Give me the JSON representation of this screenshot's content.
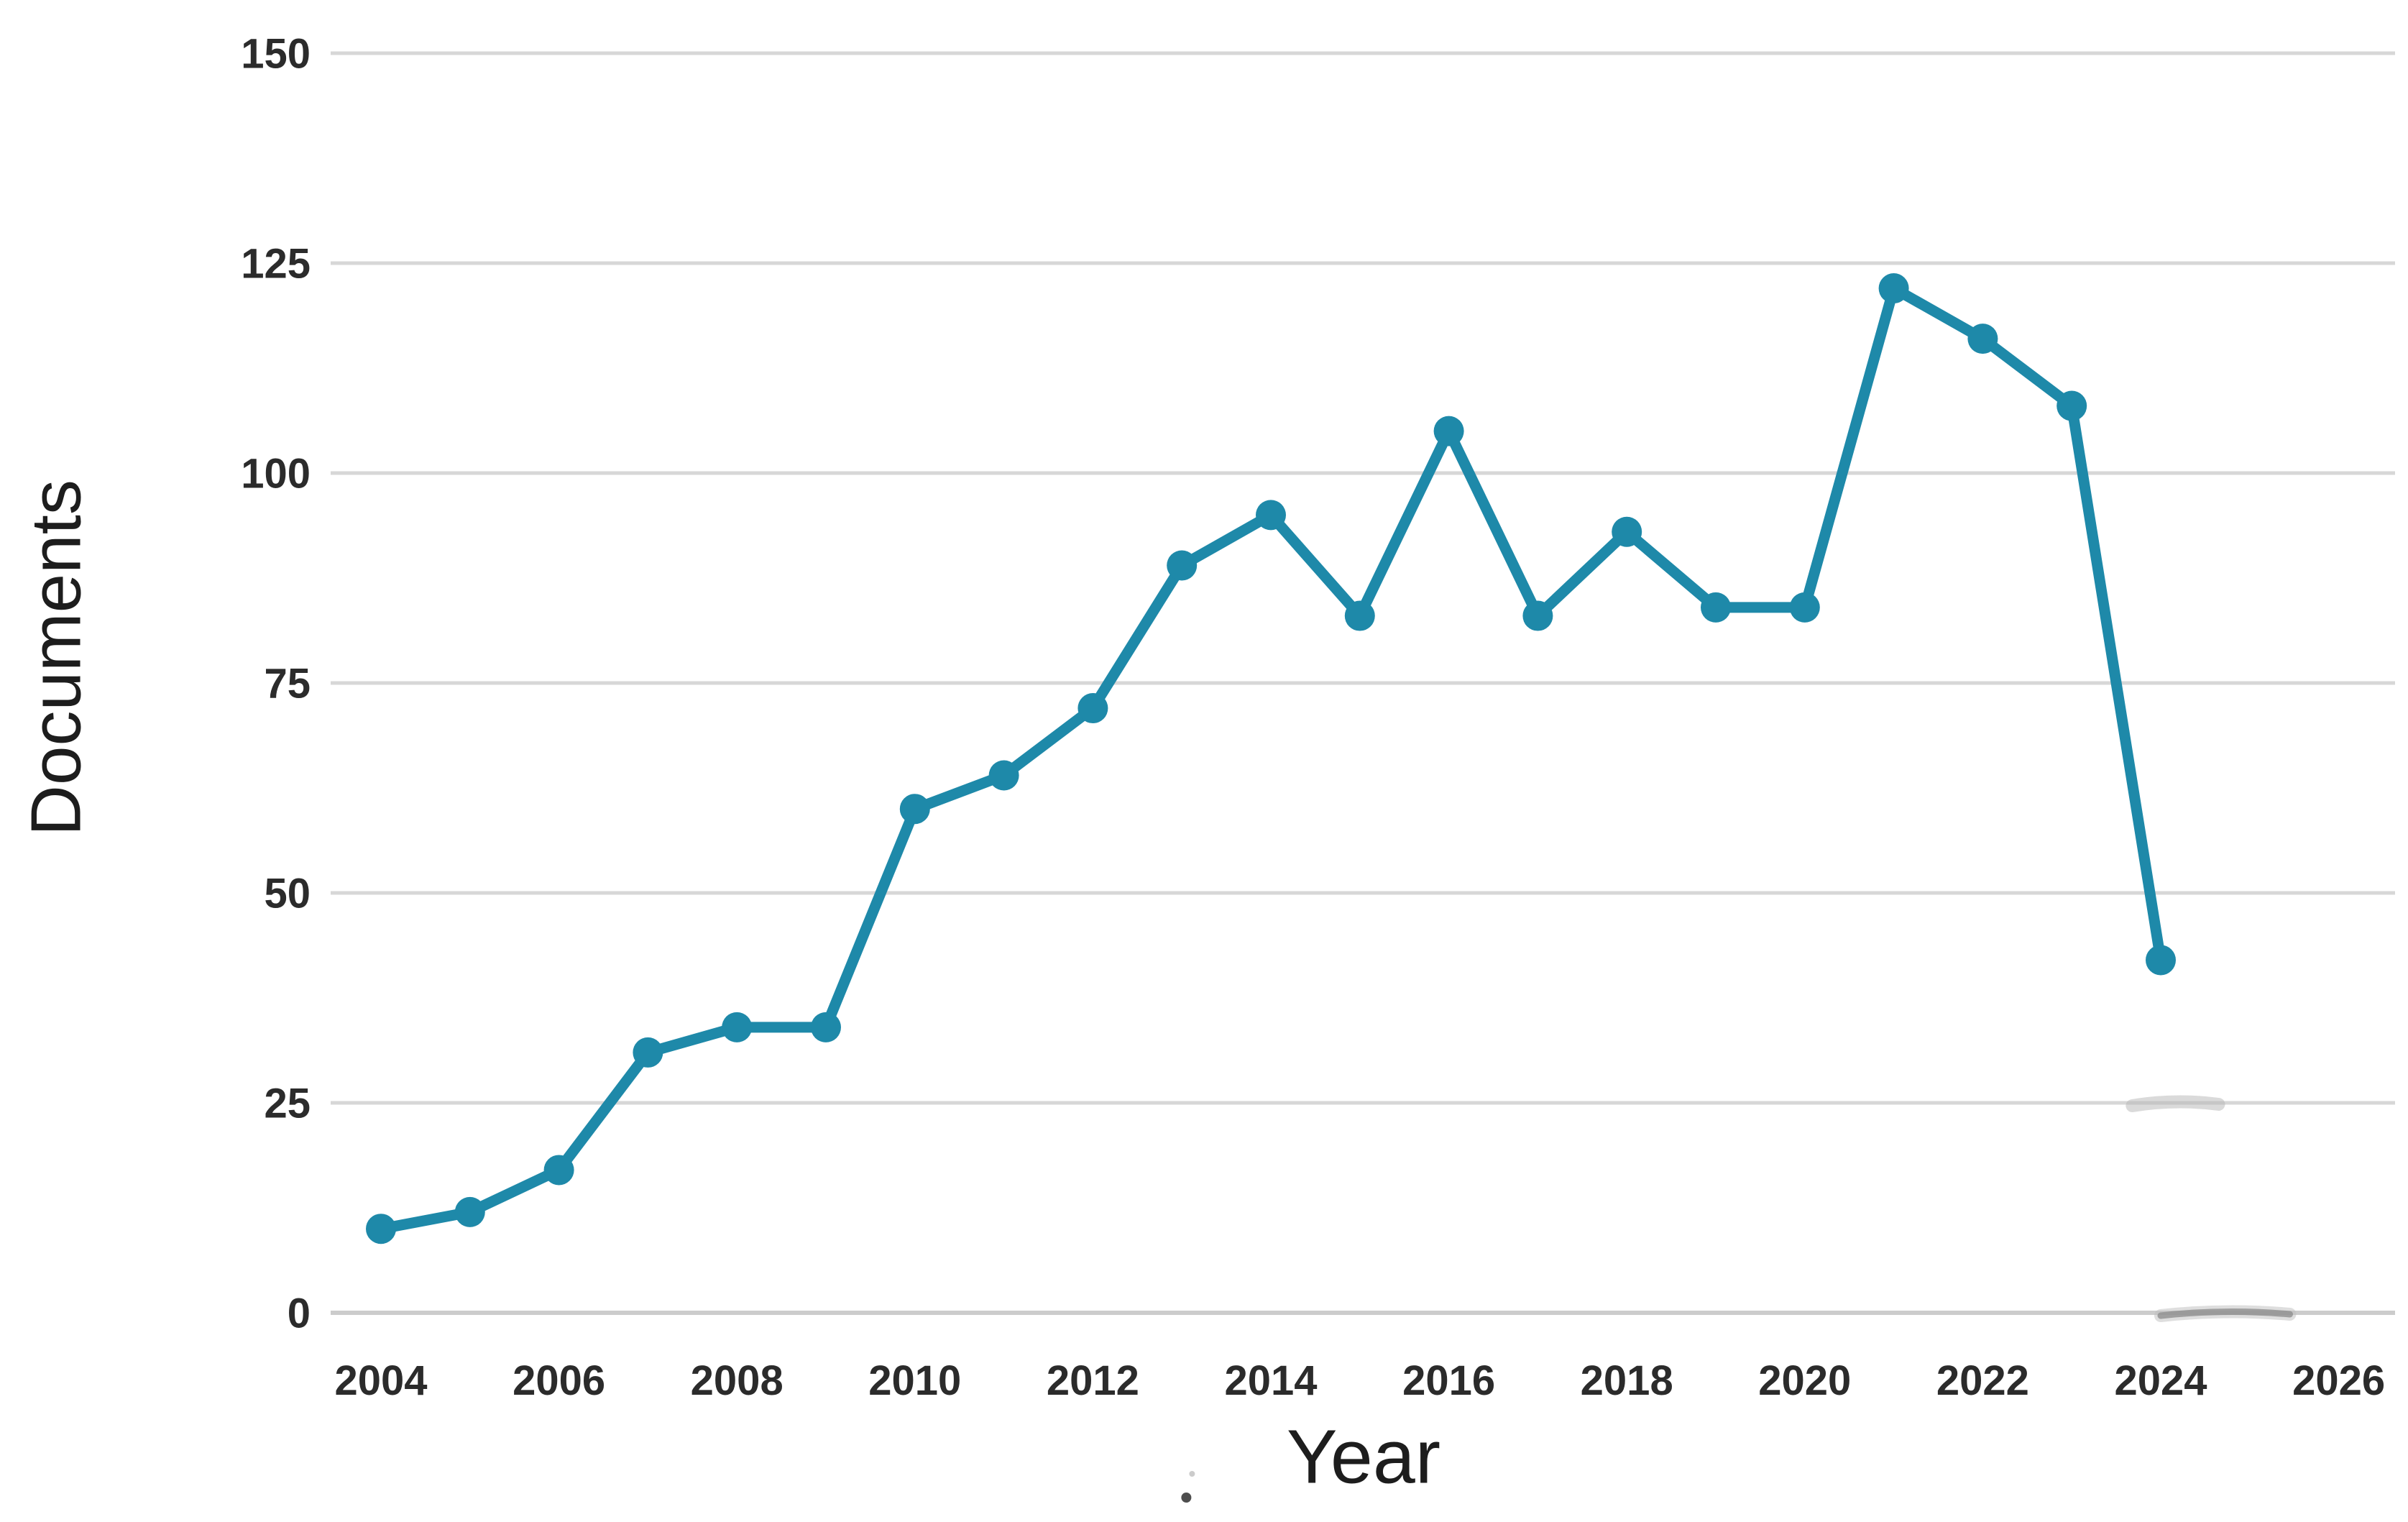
{
  "chart_data": {
    "type": "line",
    "title": "",
    "xlabel": "Year",
    "ylabel": "Documents",
    "x": [
      2004,
      2005,
      2006,
      2007,
      2008,
      2009,
      2010,
      2011,
      2012,
      2013,
      2014,
      2015,
      2016,
      2017,
      2018,
      2019,
      2020,
      2021,
      2022,
      2023,
      2024
    ],
    "series": [
      {
        "name": "Documents",
        "values": [
          10,
          12,
          17,
          31,
          34,
          34,
          60,
          64,
          72,
          89,
          95,
          83,
          105,
          83,
          93,
          84,
          84,
          122,
          116,
          108,
          42
        ]
      }
    ],
    "xticks": [
      2004,
      2006,
      2008,
      2010,
      2012,
      2014,
      2016,
      2018,
      2020,
      2022,
      2024,
      2026
    ],
    "yticks": [
      0,
      25,
      50,
      75,
      100,
      125,
      150
    ],
    "xlim": [
      2004,
      2026
    ],
    "ylim": [
      0,
      150
    ],
    "grid": "horizontal",
    "legend": "none",
    "marker": "circle",
    "colors": {
      "line": "#1e89a9",
      "marker": "#1e89a9",
      "gridline": "#d7d7d7",
      "gridline_zero": "#cccccc",
      "tick_text": "#2b2b2b",
      "axis_title_text": "#1d1d1d",
      "background": "#ffffff"
    }
  },
  "artifacts": {
    "pencil_smudge_on_zero_gridline": {
      "x_from_year": 2024.0,
      "x_to_year": 2025.45,
      "at_value": 0
    },
    "pencil_smudge_on_25_gridline": {
      "x_from_year": 2023.68,
      "x_to_year": 2024.65,
      "at_value": 25
    },
    "stray_ink_dot": {
      "near_x_year": 2013.05,
      "below_axis": true
    }
  }
}
